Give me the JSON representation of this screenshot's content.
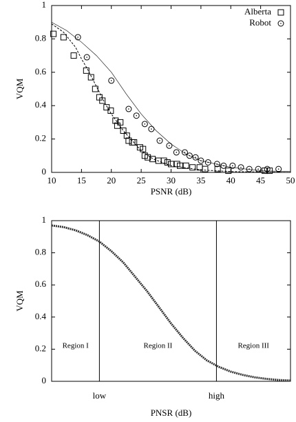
{
  "chart_data": [
    {
      "type": "scatter",
      "xlabel": "PSNR (dB)",
      "ylabel": "VQM",
      "xlim": [
        10,
        50
      ],
      "ylim": [
        0,
        1
      ],
      "xticks": [
        10,
        15,
        20,
        25,
        30,
        35,
        40,
        45,
        50
      ],
      "yticks": [
        0,
        0.2,
        0.4,
        0.6,
        0.8,
        1
      ],
      "legend": "top-right",
      "series": [
        {
          "name": "Alberta",
          "marker": "square",
          "color": "#000000",
          "x": [
            10.3,
            12,
            13.7,
            15.8,
            16.6,
            17.3,
            18,
            18.5,
            19.2,
            19.9,
            20.7,
            21,
            21.5,
            22,
            22.6,
            22.9,
            23.5,
            23.8,
            24.8,
            25.3,
            25.6,
            26.1,
            26.9,
            27.9,
            28.8,
            29.4,
            30,
            31,
            31.5,
            32.5,
            33.6,
            34.8,
            35.7,
            37.8,
            39.6,
            45.7,
            46.5
          ],
          "values": [
            0.83,
            0.81,
            0.7,
            0.61,
            0.57,
            0.5,
            0.45,
            0.43,
            0.39,
            0.37,
            0.31,
            0.28,
            0.3,
            0.25,
            0.22,
            0.19,
            0.18,
            0.18,
            0.15,
            0.14,
            0.1,
            0.09,
            0.08,
            0.07,
            0.07,
            0.06,
            0.05,
            0.05,
            0.04,
            0.04,
            0.03,
            0.03,
            0.02,
            0.02,
            0.01,
            0.01,
            0.01
          ]
        },
        {
          "name": "Robot",
          "marker": "circle",
          "color": "#000000",
          "x": [
            14.4,
            15.9,
            20,
            22.9,
            24.2,
            25.6,
            26.7,
            28.1,
            29.7,
            30.9,
            32.3,
            33.1,
            34.1,
            35,
            36.2,
            37.7,
            38.8,
            40.3,
            41.7,
            43.1,
            44.6,
            46.1,
            48
          ],
          "values": [
            0.81,
            0.69,
            0.55,
            0.38,
            0.34,
            0.29,
            0.26,
            0.19,
            0.16,
            0.12,
            0.12,
            0.1,
            0.09,
            0.07,
            0.06,
            0.05,
            0.04,
            0.04,
            0.03,
            0.02,
            0.02,
            0.02,
            0.02
          ]
        }
      ],
      "curves": [
        {
          "style": "dashed",
          "x": [
            10,
            12,
            14,
            15,
            16,
            17,
            18,
            19,
            20,
            21,
            22,
            23,
            25,
            27,
            30,
            35,
            40,
            50
          ],
          "values": [
            0.89,
            0.84,
            0.75,
            0.68,
            0.62,
            0.55,
            0.48,
            0.41,
            0.35,
            0.3,
            0.25,
            0.21,
            0.13,
            0.08,
            0.04,
            0.015,
            0.005,
            0
          ]
        },
        {
          "style": "solid",
          "x": [
            10,
            12.5,
            15,
            17.5,
            20,
            22.5,
            25,
            27.5,
            30,
            32.5,
            35,
            40,
            45,
            50
          ],
          "values": [
            0.9,
            0.85,
            0.78,
            0.7,
            0.6,
            0.47,
            0.35,
            0.25,
            0.17,
            0.11,
            0.07,
            0.03,
            0.01,
            0.005
          ]
        }
      ]
    },
    {
      "type": "line",
      "xlabel": "PNSR (dB)",
      "ylabel": "VQM",
      "xlim": [
        0,
        1
      ],
      "ylim": [
        0,
        1
      ],
      "xticks": [
        {
          "value": 0.2,
          "label": "low"
        },
        {
          "value": 0.69,
          "label": "high"
        }
      ],
      "yticks": [
        0,
        0.2,
        0.4,
        0.6,
        0.8,
        1
      ],
      "annotations": [
        "Region I",
        "Region II",
        "Region III"
      ],
      "color": "#333333",
      "x": [
        0,
        0.05,
        0.1,
        0.15,
        0.2,
        0.25,
        0.3,
        0.35,
        0.4,
        0.45,
        0.5,
        0.55,
        0.6,
        0.65,
        0.7,
        0.75,
        0.8,
        0.85,
        0.9,
        0.95,
        1
      ],
      "values": [
        0.97,
        0.96,
        0.94,
        0.91,
        0.87,
        0.81,
        0.74,
        0.65,
        0.56,
        0.46,
        0.36,
        0.27,
        0.19,
        0.13,
        0.09,
        0.06,
        0.04,
        0.025,
        0.015,
        0.008,
        0.005
      ]
    }
  ]
}
